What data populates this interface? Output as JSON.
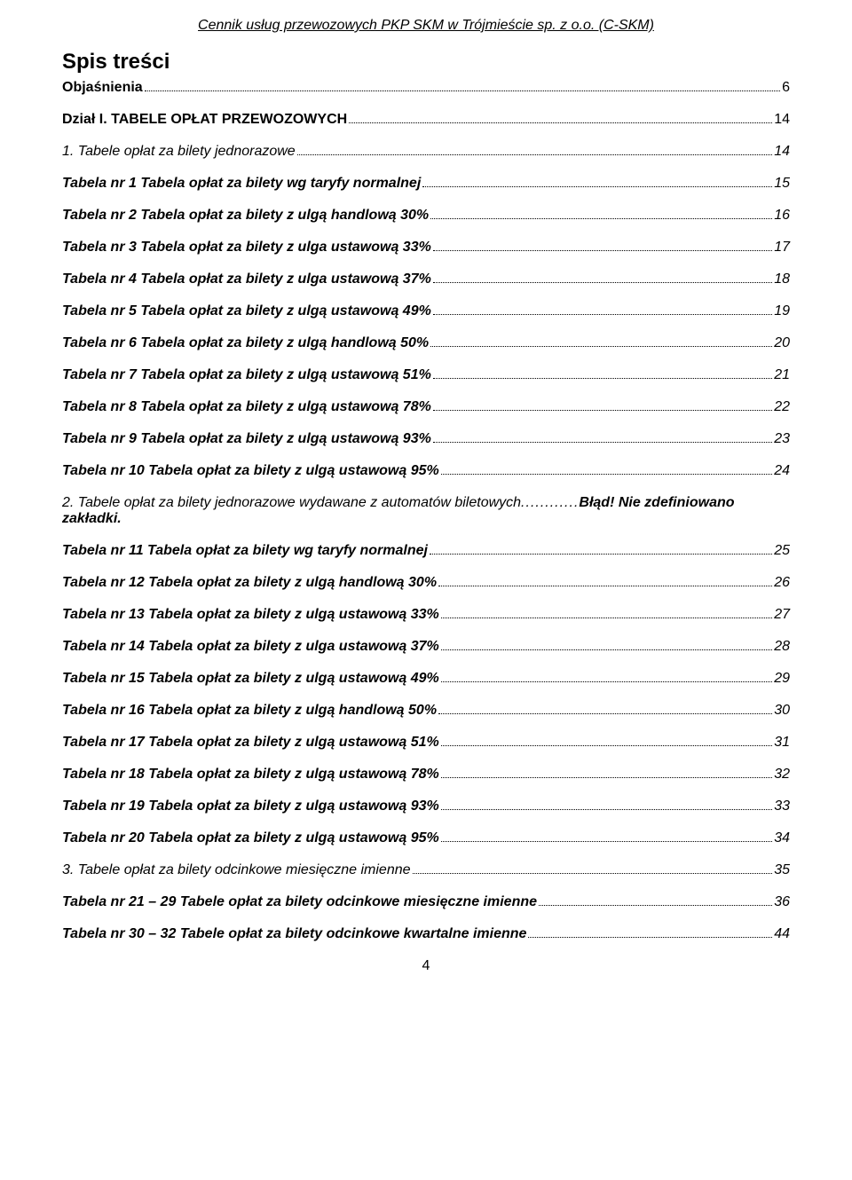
{
  "header": "Cennik usług przewozowych PKP SKM w Trójmieście sp. z o.o. (C-SKM)",
  "title": "Spis treści",
  "entries": [
    {
      "label": "Objaśnienia",
      "page": "6",
      "style": "bold"
    },
    {
      "label": "Dział I. TABELE OPŁAT PRZEWOZOWYCH",
      "page": "14",
      "style": "bold"
    },
    {
      "label": "1. Tabele opłat za bilety jednorazowe",
      "page": "14",
      "style": "italic"
    },
    {
      "label": "Tabela nr 1 Tabela opłat za bilety wg taryfy normalnej",
      "page": "15",
      "style": "bolditalic"
    },
    {
      "label": "Tabela nr 2 Tabela opłat za bilety z ulgą handlową 30%",
      "page": "16",
      "style": "bolditalic"
    },
    {
      "label": "Tabela nr 3 Tabela opłat za bilety z ulga ustawową 33%",
      "page": "17",
      "style": "bolditalic"
    },
    {
      "label": "Tabela nr 4 Tabela opłat za bilety z ulga ustawową 37%",
      "page": "18",
      "style": "bolditalic"
    },
    {
      "label": "Tabela nr 5 Tabela opłat za bilety z ulgą ustawową 49%",
      "page": "19",
      "style": "bolditalic"
    },
    {
      "label": "Tabela nr 6 Tabela opłat za bilety z ulgą handlową 50%",
      "page": "20",
      "style": "bolditalic"
    },
    {
      "label": "Tabela nr 7 Tabela opłat za bilety z ulgą ustawową 51%",
      "page": "21",
      "style": "bolditalic"
    },
    {
      "label": "Tabela nr 8 Tabela opłat za bilety z ulgą ustawową 78%",
      "page": "22",
      "style": "bolditalic"
    },
    {
      "label": "Tabela nr 9 Tabela opłat za bilety z ulgą ustawową 93%",
      "page": "23",
      "style": "bolditalic"
    },
    {
      "label": "Tabela nr 10 Tabela opłat za bilety z ulgą ustawową 95%",
      "page": "24",
      "style": "bolditalic"
    }
  ],
  "error_entry": {
    "label": "2. Tabele opłat za bilety jednorazowe wydawane z automatów biletowych",
    "dots": "............",
    "error": "Błąd! Nie zdefiniowano zakładki."
  },
  "entries2": [
    {
      "label": "Tabela nr 11 Tabela opłat za bilety wg taryfy normalnej",
      "page": "25",
      "style": "bolditalic"
    },
    {
      "label": "Tabela nr 12 Tabela opłat za bilety z ulgą handlową 30%",
      "page": "26",
      "style": "bolditalic"
    },
    {
      "label": "Tabela nr 13 Tabela opłat za bilety z ulgą ustawową 33%",
      "page": "27",
      "style": "bolditalic"
    },
    {
      "label": "Tabela nr 14 Tabela opłat za bilety z ulga ustawową 37%",
      "page": "28",
      "style": "bolditalic"
    },
    {
      "label": "Tabela nr 15 Tabela opłat za bilety z ulgą ustawową 49%",
      "page": "29",
      "style": "bolditalic"
    },
    {
      "label": "Tabela nr 16 Tabela opłat za bilety z ulgą handlową 50%",
      "page": "30",
      "style": "bolditalic"
    },
    {
      "label": "Tabela nr 17 Tabela opłat za bilety z ulgą ustawową 51%",
      "page": "31",
      "style": "bolditalic"
    },
    {
      "label": "Tabela nr 18 Tabela opłat za bilety z ulgą ustawową 78%",
      "page": "32",
      "style": "bolditalic"
    },
    {
      "label": "Tabela nr 19 Tabela opłat za bilety z ulgą ustawową 93%",
      "page": "33",
      "style": "bolditalic"
    },
    {
      "label": "Tabela nr 20 Tabela opłat za bilety z ulgą ustawową 95%",
      "page": "34",
      "style": "bolditalic"
    },
    {
      "label": "3. Tabele opłat za bilety odcinkowe miesięczne imienne",
      "page": "35",
      "style": "italic"
    },
    {
      "label": "Tabela nr 21 – 29 Tabele opłat za bilety odcinkowe miesięczne imienne",
      "page": "36",
      "style": "bolditalic"
    },
    {
      "label": "Tabela nr 30 – 32 Tabele opłat za bilety odcinkowe kwartalne imienne",
      "page": "44",
      "style": "bolditalic"
    }
  ],
  "footer_page": "4"
}
